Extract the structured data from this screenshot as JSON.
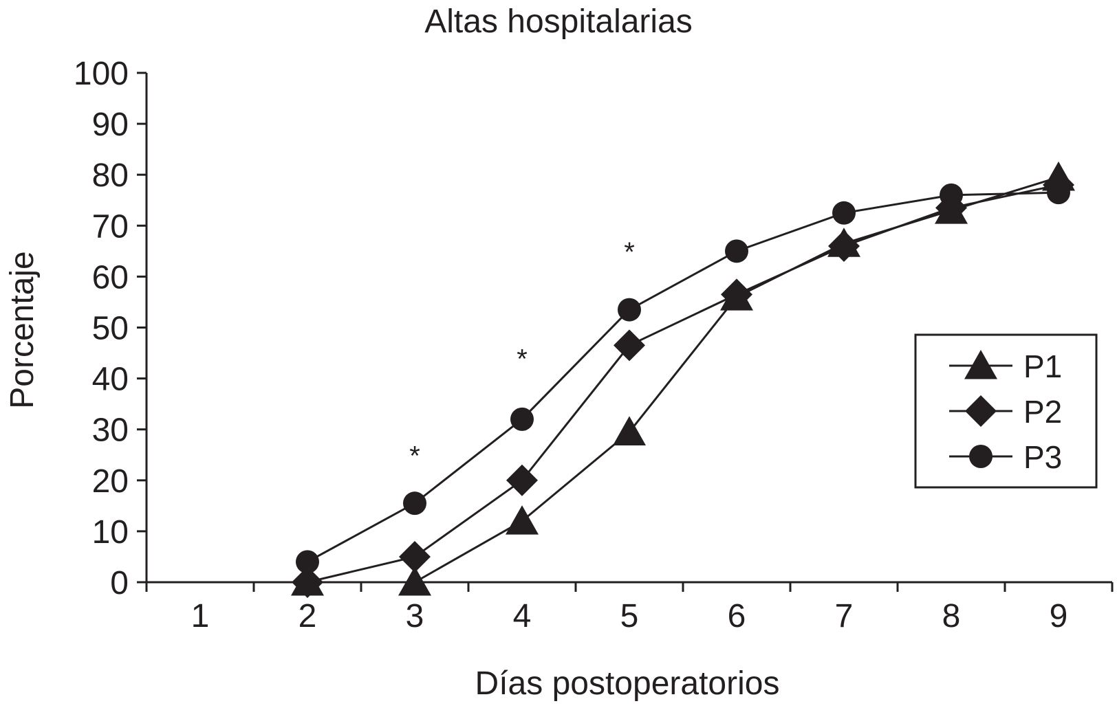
{
  "chart_data": {
    "type": "line",
    "title": "Altas hospitalarias",
    "xlabel": "Días postoperatorios",
    "ylabel": "Porcentaje",
    "x": [
      1,
      2,
      3,
      4,
      5,
      6,
      7,
      8,
      9
    ],
    "x_tick_labels": [
      "1",
      "2",
      "3",
      "4",
      "5",
      "6",
      "7",
      "8",
      "9"
    ],
    "y_tick_labels": [
      "0",
      "10",
      "20",
      "30",
      "40",
      "50",
      "60",
      "70",
      "80",
      "90",
      "100"
    ],
    "ylim": [
      0,
      100
    ],
    "grid": false,
    "legend_position": "right",
    "series": [
      {
        "name": "P1",
        "marker": "triangle",
        "x": [
          2,
          3,
          4,
          5,
          6,
          7,
          8,
          9
        ],
        "values": [
          0,
          0,
          12,
          29.5,
          56,
          66.5,
          73,
          79.5
        ]
      },
      {
        "name": "P2",
        "marker": "diamond",
        "x": [
          2,
          3,
          4,
          5,
          6,
          7,
          8,
          9
        ],
        "values": [
          0,
          5,
          20,
          46.5,
          56.5,
          66,
          73.5,
          78
        ]
      },
      {
        "name": "P3",
        "marker": "circle",
        "x": [
          2,
          3,
          4,
          5,
          6,
          7,
          8,
          9
        ],
        "values": [
          4,
          15.5,
          32,
          53.5,
          65,
          72.5,
          76,
          76.5
        ]
      }
    ],
    "annotations": [
      {
        "x": 3,
        "text": "*",
        "y": 26
      },
      {
        "x": 4,
        "text": "*",
        "y": 45
      },
      {
        "x": 5,
        "text": "*",
        "y": 66
      }
    ],
    "colors": {
      "line": "#231f20",
      "marker": "#231f20",
      "background": "#ffffff"
    }
  }
}
